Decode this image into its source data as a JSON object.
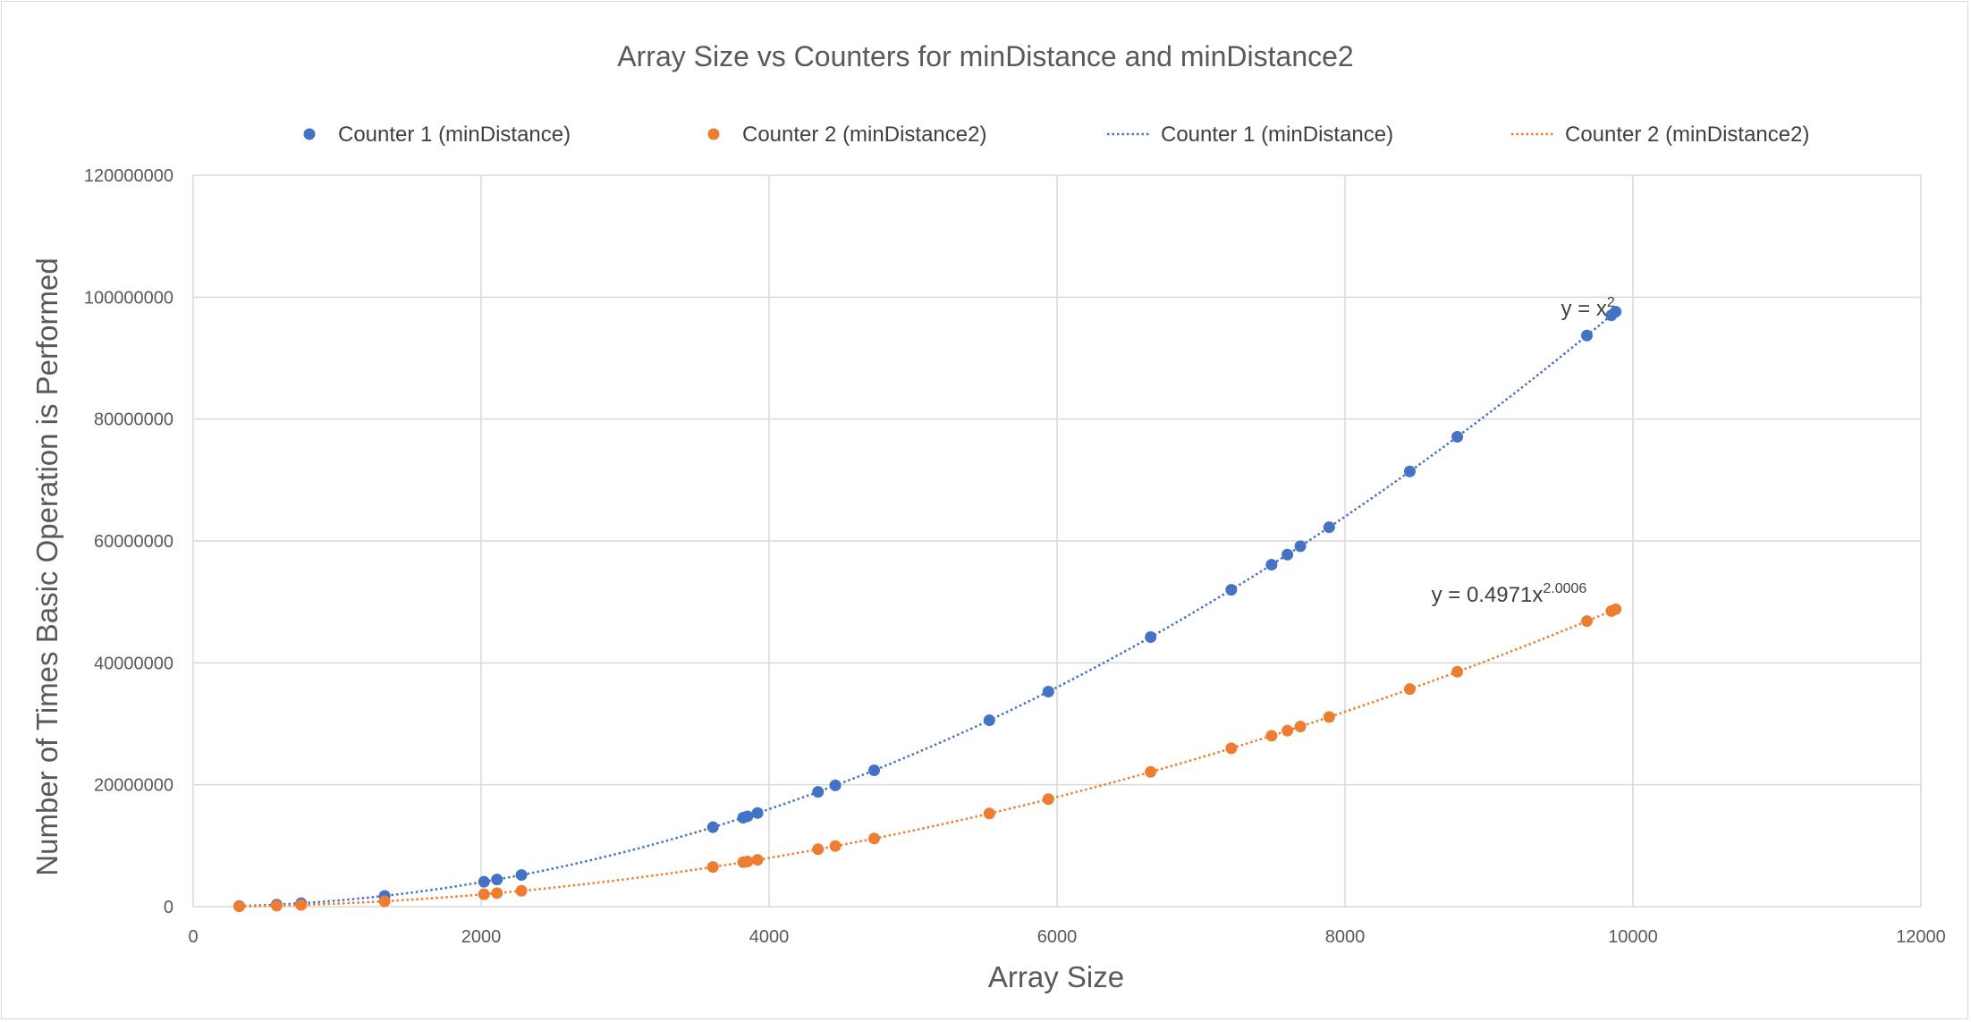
{
  "chart_data": {
    "type": "scatter",
    "title": "Array Size vs Counters for minDistance and minDistance2",
    "xlabel": "Array Size",
    "ylabel": "Number of Times Basic Operation is Performed",
    "xlim": [
      0,
      12000
    ],
    "ylim": [
      0,
      120000000
    ],
    "x_ticks": [
      "0",
      "2000",
      "4000",
      "6000",
      "8000",
      "10000",
      "12000"
    ],
    "y_ticks": [
      "0",
      "20000000",
      "40000000",
      "60000000",
      "80000000",
      "100000000",
      "120000000"
    ],
    "grid": true,
    "legend_position": "top",
    "legend": [
      {
        "label": "Counter 1 (minDistance)",
        "kind": "marker",
        "color": "#4472c4"
      },
      {
        "label": "Counter 2 (minDistance2)",
        "kind": "marker",
        "color": "#ed7d31"
      },
      {
        "label": "Counter 1 (minDistance)",
        "kind": "dotted-line",
        "color": "#4472c4"
      },
      {
        "label": "Counter 2 (minDistance2)",
        "kind": "dotted-line",
        "color": "#ed7d31"
      }
    ],
    "series": [
      {
        "name": "Counter 1 (minDistance)",
        "color": "#4472c4",
        "x": [
          320,
          580,
          750,
          1330,
          2020,
          2110,
          2280,
          3610,
          3820,
          3850,
          3920,
          4340,
          4460,
          4730,
          5530,
          5940,
          6650,
          7210,
          7490,
          7600,
          7690,
          7890,
          8450,
          8780,
          9680,
          9850,
          9880
        ],
        "y": [
          102400,
          336400,
          562500,
          1768900,
          4080400,
          4452100,
          5198400,
          13032100,
          14592400,
          14822500,
          15366400,
          18835600,
          19891600,
          22372900,
          30580900,
          35283600,
          44222500,
          51984100,
          56100100,
          57760000,
          59136100,
          62252100,
          71402500,
          77088400,
          93702400,
          97022500,
          97614400
        ]
      },
      {
        "name": "Counter 2 (minDistance2)",
        "color": "#ed7d31",
        "x": [
          320,
          580,
          750,
          1330,
          2020,
          2110,
          2280,
          3610,
          3820,
          3850,
          3920,
          4340,
          4460,
          4730,
          5530,
          5940,
          6650,
          7210,
          7490,
          7600,
          7690,
          7890,
          8450,
          8780,
          9680,
          9850,
          9880
        ],
        "y": [
          51040,
          167910,
          280875,
          883785,
          2039190,
          2225055,
          2598060,
          6514245,
          7294290,
          7409325,
          7681260,
          9417330,
          9944970,
          11185935,
          15289815,
          17640330,
          22108825,
          25988445,
          28046305,
          28876200,
          29564305,
          31122105,
          35697025,
          38539710,
          46846560,
          48506175,
          48802260
        ]
      }
    ],
    "trendlines": [
      {
        "series": "Counter 1 (minDistance)",
        "type": "power",
        "a": 1,
        "b": 2,
        "x_range": [
          320,
          9880
        ],
        "style": "dotted",
        "color": "#4472c4"
      },
      {
        "series": "Counter 2 (minDistance2)",
        "type": "power",
        "a": 0.4971,
        "b": 2.0006,
        "x_range": [
          320,
          9880
        ],
        "style": "dotted",
        "color": "#ed7d31"
      }
    ],
    "annotations": [
      {
        "base": "y = x",
        "sup": "2",
        "at": [
          9500,
          97000000
        ]
      },
      {
        "base": "y = 0.4971x",
        "sup": "2.0006",
        "at": [
          8600,
          50000000
        ]
      }
    ]
  }
}
